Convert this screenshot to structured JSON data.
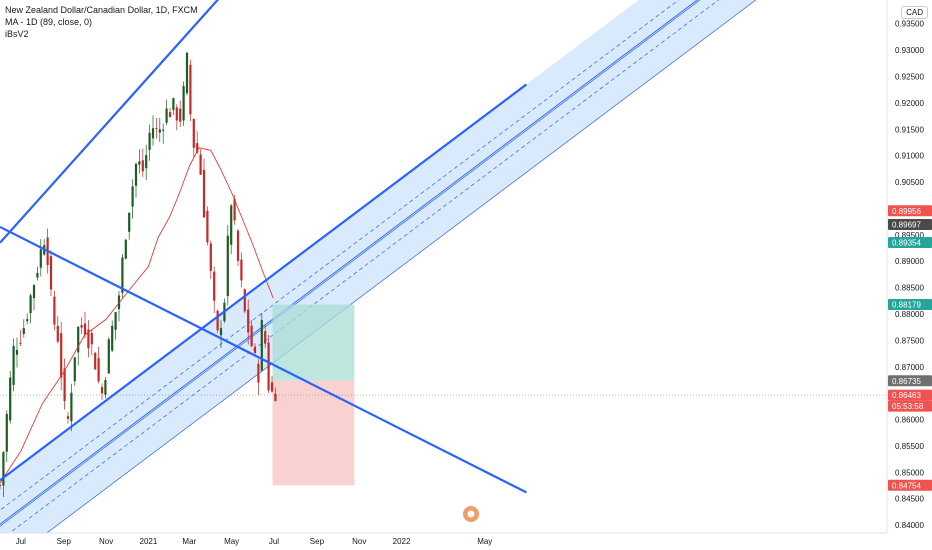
{
  "legend": {
    "title": "New Zealand Dollar/Canadian Dollar, 1D, FXCM",
    "ma": "MA - 1D (89, close, 0)",
    "indicator": "iBsV2"
  },
  "currency_badge": "CAD",
  "colors": {
    "up": "#26a69a",
    "down": "#ef5350",
    "candle_up": "#1b5e20",
    "candle_down": "#c62828",
    "line": "#2962ff",
    "channel_fill": "#cfe5fb",
    "ma": "#e53935",
    "target_zone": "#a8dcd3",
    "stop_zone": "#f9c9c9"
  },
  "chart_data": {
    "type": "candlestick",
    "symbol": "NZDCAD",
    "timeframe": "1D",
    "x_ticks": [
      "Jul",
      "Sep",
      "Nov",
      "2021",
      "Mar",
      "May",
      "Jul",
      "Sep",
      "Nov",
      "2022",
      "May"
    ],
    "y_ticks": [
      "0.93500",
      "0.93000",
      "0.92500",
      "0.92000",
      "0.91500",
      "0.91000",
      "0.90500",
      "0.90000",
      "0.89500",
      "0.89000",
      "0.88500",
      "0.88000",
      "0.87500",
      "0.87000",
      "0.86500",
      "0.86000",
      "0.85500",
      "0.85000",
      "0.84500",
      "0.84000"
    ],
    "ylim": [
      0.8385,
      0.9395
    ],
    "price_labels": [
      {
        "value": "0.89956",
        "bg": "#ef5350"
      },
      {
        "value": "0.89697",
        "bg": "#4a4a4a"
      },
      {
        "value": "0.89354",
        "bg": "#26a69a"
      },
      {
        "value": "0.88179",
        "bg": "#26a69a"
      },
      {
        "value": "0.86735",
        "bg": "#707070"
      },
      {
        "value": "0.86463",
        "bg": "#ef5350"
      },
      {
        "value": "05:53:58",
        "bg": "#ef5350"
      }
    ],
    "position": {
      "entry": 0.86735,
      "target": 0.88179,
      "stop": 0.84754,
      "start": "2021-06-29",
      "end": "2021-10-25"
    },
    "stop_label": "0.84754",
    "last_price": 0.86463,
    "trendlines": [
      {
        "name": "upper resistance",
        "from": [
          "2020-06-01",
          0.8935
        ],
        "to": [
          "2022-02-15",
          0.985
        ]
      },
      {
        "name": "descending line",
        "from": [
          "2020-06-01",
          0.8965
        ],
        "to": [
          "2022-06-30",
          0.8462
        ]
      },
      {
        "name": "channel top",
        "from": [
          "2020-06-01",
          0.8485
        ],
        "to": [
          "2022-06-30",
          0.9235
        ]
      }
    ],
    "close_series": [
      [
        "2020-06-01",
        0.8475
      ],
      [
        "2020-06-20",
        0.873
      ],
      [
        "2020-07-05",
        0.8775
      ],
      [
        "2020-07-25",
        0.889
      ],
      [
        "2020-08-06",
        0.896
      ],
      [
        "2020-08-15",
        0.88
      ],
      [
        "2020-08-25",
        0.875
      ],
      [
        "2020-09-01",
        0.862
      ],
      [
        "2020-09-07",
        0.8598
      ],
      [
        "2020-09-20",
        0.877
      ],
      [
        "2020-10-01",
        0.878
      ],
      [
        "2020-10-15",
        0.872
      ],
      [
        "2020-10-25",
        0.864
      ],
      [
        "2020-11-05",
        0.874
      ],
      [
        "2020-11-20",
        0.884
      ],
      [
        "2020-12-01",
        0.898
      ],
      [
        "2020-12-15",
        0.909
      ],
      [
        "2020-12-25",
        0.907
      ],
      [
        "2021-01-05",
        0.916
      ],
      [
        "2021-01-15",
        0.914
      ],
      [
        "2021-01-25",
        0.918
      ],
      [
        "2021-02-05",
        0.919
      ],
      [
        "2021-02-18",
        0.917
      ],
      [
        "2021-02-25",
        0.929
      ],
      [
        "2021-03-05",
        0.913
      ],
      [
        "2021-03-15",
        0.91
      ],
      [
        "2021-03-25",
        0.896
      ],
      [
        "2021-04-05",
        0.882
      ],
      [
        "2021-04-10",
        0.875
      ],
      [
        "2021-04-20",
        0.882
      ],
      [
        "2021-04-30",
        0.902
      ],
      [
        "2021-05-10",
        0.89
      ],
      [
        "2021-05-20",
        0.88
      ],
      [
        "2021-05-30",
        0.874
      ],
      [
        "2021-06-08",
        0.868
      ],
      [
        "2021-06-15",
        0.88
      ],
      [
        "2021-06-25",
        0.864
      ],
      [
        "2021-07-02",
        0.866
      ],
      [
        "2021-07-08",
        0.8646
      ]
    ],
    "ma_series": [
      [
        "2020-06-01",
        0.848
      ],
      [
        "2020-07-01",
        0.854
      ],
      [
        "2020-08-01",
        0.863
      ],
      [
        "2020-09-01",
        0.869
      ],
      [
        "2020-10-01",
        0.876
      ],
      [
        "2020-11-01",
        0.879
      ],
      [
        "2020-12-01",
        0.884
      ],
      [
        "2021-01-01",
        0.889
      ],
      [
        "2021-01-15",
        0.8945
      ],
      [
        "2021-02-01",
        0.8985
      ],
      [
        "2021-02-15",
        0.903
      ],
      [
        "2021-03-01",
        0.908
      ],
      [
        "2021-03-15",
        0.9115
      ],
      [
        "2021-04-01",
        0.911
      ],
      [
        "2021-04-15",
        0.9075
      ],
      [
        "2021-05-01",
        0.903
      ],
      [
        "2021-05-15",
        0.8985
      ],
      [
        "2021-06-01",
        0.893
      ],
      [
        "2021-06-15",
        0.888
      ],
      [
        "2021-06-30",
        0.883
      ]
    ]
  }
}
